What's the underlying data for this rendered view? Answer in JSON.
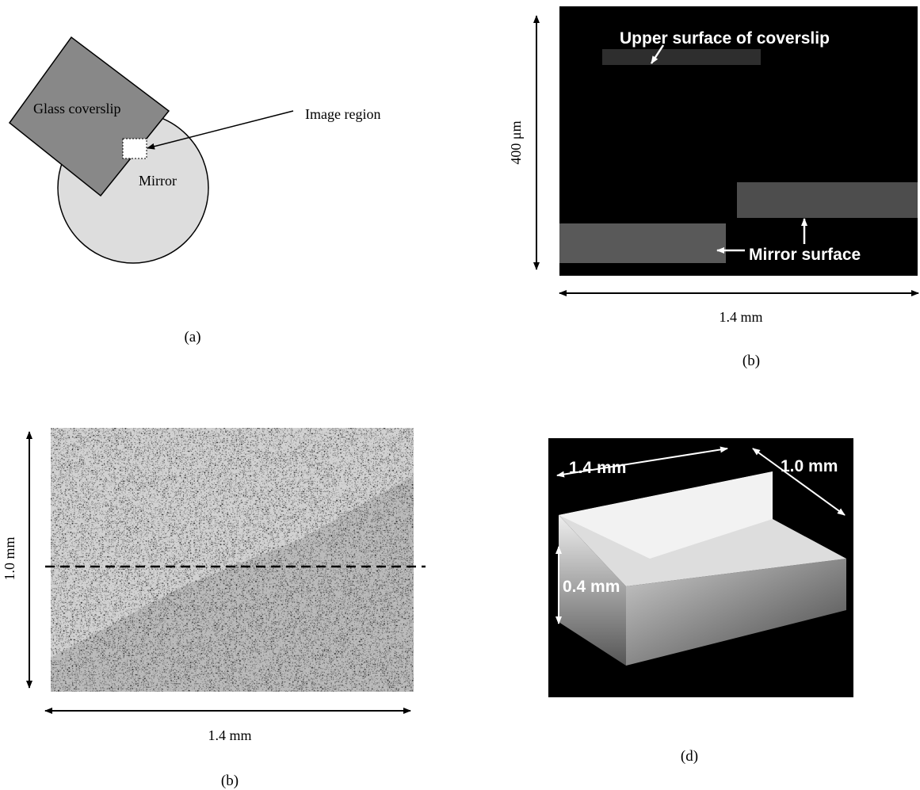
{
  "panels": [
    {
      "label": "(a)",
      "annotations": [
        "Glass coverslip",
        "Mirror",
        "Image region"
      ]
    },
    {
      "label": "(b)",
      "annotations": [
        "Upper surface of coverslip",
        "Mirror surface"
      ],
      "height": "400 μm",
      "width": "1.4 mm"
    },
    {
      "label": "(b)",
      "height": "1.0 mm",
      "width": "1.4 mm"
    },
    {
      "label": "(d)",
      "annotations": [
        "1.4 mm",
        "1.0 mm",
        "0.4 mm"
      ]
    }
  ]
}
